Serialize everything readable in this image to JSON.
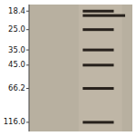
{
  "chart_data": {
    "type": "gel",
    "log": "y",
    "grid": false,
    "tick_labels": "y",
    "ylim": [
      135.0,
      16.5
    ],
    "yticks": [
      {
        "value": 116.0,
        "label": "116.0"
      },
      66.2,
      {
        "value": 45.0,
        "label": "45.0"
      },
      {
        "value": 35.0,
        "label": "35.0"
      },
      {
        "value": 25.0,
        "label": "25.0"
      },
      18.4
    ],
    "series": [
      {
        "values": [
          116.0,
          66.2,
          45.0,
          35.0,
          25.0,
          18.4
        ],
        "color": "#1a1510"
      },
      {
        "values": [
          19.8
        ],
        "color": "#1a1510"
      }
    ]
  }
}
